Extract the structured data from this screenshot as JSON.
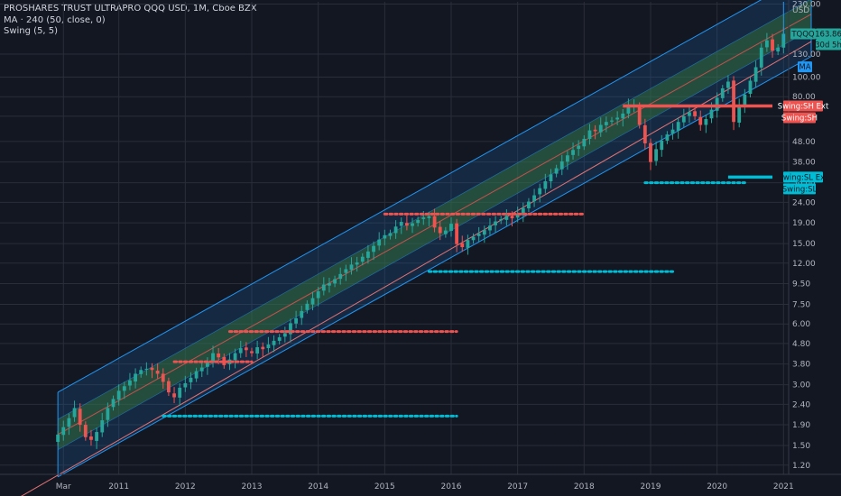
{
  "legend": {
    "symbol": "PROSHARES TRUST ULTRAPRO QQQ USD, 1M, Cboe BZX",
    "ma": "MA · 240 (50, close, 0)",
    "swing": "Swing (5, 5)"
  },
  "tags": {
    "currency": "USD",
    "ticker": "TQQQ",
    "last_price": "163.86",
    "countdown": "30d 5h",
    "ma": "MA",
    "sh_ext": "Swing:SH Ext",
    "sh": "Swing:SH",
    "sl_ext": "Swing:SL Ext",
    "sl": "Swing:SL"
  },
  "colors": {
    "background": "#131722",
    "up": "#26a69a",
    "down": "#ef5350",
    "channel_outer": "#2196f3",
    "channel_fill": "#1e5a9a",
    "channel_inner_fill": "#3a7a3a",
    "midline": "#ef5350",
    "swing_high": "#ef5350",
    "swing_low": "#00bcd4",
    "grid": "#2a2e39"
  },
  "chart_data": {
    "type": "candlestick",
    "y_scale": "log",
    "y_ticks": [
      "230.00",
      "130.00",
      "100.00",
      "80.00",
      "64.00",
      "48.00",
      "38.00",
      "30.00",
      "24.00",
      "19.00",
      "15.00",
      "12.00",
      "9.50",
      "7.50",
      "6.00",
      "4.80",
      "3.80",
      "3.00",
      "2.40",
      "1.90",
      "1.50",
      "1.20"
    ],
    "x_ticks": [
      "Mar",
      "2011",
      "2012",
      "2013",
      "2014",
      "2015",
      "2016",
      "2017",
      "2018",
      "2019",
      "2020",
      "2021"
    ],
    "x_range": [
      "2010-02",
      "2021-06"
    ],
    "y_range": [
      1.08,
      236
    ],
    "last_price": 163.86,
    "candles_monthly_close": [
      1.7,
      1.85,
      2.05,
      2.3,
      1.9,
      1.65,
      1.6,
      1.75,
      2.0,
      2.3,
      2.55,
      2.8,
      2.95,
      3.15,
      3.4,
      3.55,
      3.6,
      3.55,
      3.4,
      3.1,
      2.75,
      2.6,
      2.9,
      3.05,
      3.25,
      3.5,
      3.65,
      3.9,
      4.3,
      4.1,
      3.75,
      4.0,
      4.3,
      4.55,
      4.45,
      4.3,
      4.6,
      4.5,
      4.75,
      4.95,
      5.15,
      5.4,
      6.05,
      6.4,
      6.95,
      7.55,
      8.05,
      8.7,
      9.4,
      9.55,
      10.0,
      10.6,
      11.2,
      11.8,
      12.1,
      12.9,
      13.7,
      14.6,
      15.7,
      16.5,
      16.9,
      18.2,
      19.2,
      18.4,
      18.9,
      19.6,
      20.2,
      20.5,
      18.0,
      16.9,
      17.4,
      18.8,
      14.9,
      14.4,
      15.6,
      16.2,
      16.8,
      17.5,
      18.4,
      19.3,
      19.8,
      20.6,
      20.0,
      21.0,
      22.5,
      24.2,
      26.0,
      28.2,
      30.5,
      33.0,
      35.4,
      38.3,
      41.0,
      43.6,
      45.8,
      49.5,
      54.5,
      54.0,
      58.0,
      60.0,
      61.0,
      63.0,
      66.0,
      72.0,
      73.0,
      58.0,
      47.0,
      38.0,
      44.0,
      48.5,
      52.0,
      55.0,
      60.0,
      64.0,
      67.0,
      64.0,
      58.0,
      62.0,
      69.0,
      79.0,
      88.0,
      95.0,
      60.0,
      72.0,
      82.0,
      96.0,
      112.0,
      140.0,
      152.0,
      135.0,
      140.0,
      163.86
    ],
    "channel": {
      "start_date": "2010-02",
      "end_date": "2021-06",
      "mid_start": 1.7,
      "mid_end": 205.0,
      "outer_factor": 1.62,
      "inner_factor": 1.19
    },
    "ma_line": {
      "name": "MA 240",
      "start_date": "2010-02",
      "start": 1.25,
      "end_date": "2021-06",
      "end": 150.0
    },
    "swing_highs": [
      {
        "value": 3.9,
        "from": "2011-11",
        "to": "2013-01",
        "ext": false
      },
      {
        "value": 5.5,
        "from": "2012-09",
        "to": "2016-02",
        "ext": false
      },
      {
        "value": 21.0,
        "from": "2015-01",
        "to": "2018-01",
        "ext": false
      },
      {
        "value": 72.0,
        "from": "2018-08",
        "to": "2020-11",
        "ext": true
      }
    ],
    "swing_lows": [
      {
        "value": 2.1,
        "from": "2011-09",
        "to": "2016-02",
        "ext": false
      },
      {
        "value": 10.9,
        "from": "2015-09",
        "to": "2019-05",
        "ext": false
      },
      {
        "value": 30.0,
        "from": "2018-12",
        "to": "2020-06",
        "ext": false
      },
      {
        "value": 32.0,
        "from": "2020-03",
        "to": "2020-11",
        "ext": true
      }
    ]
  }
}
